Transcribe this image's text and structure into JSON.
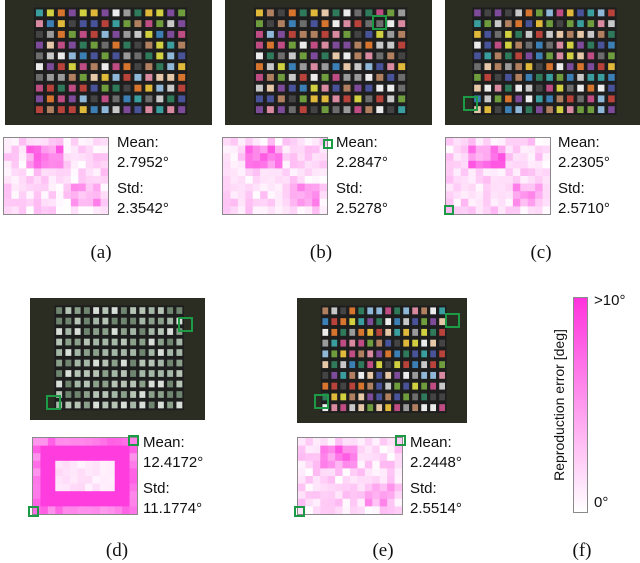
{
  "panels": [
    {
      "caption": "(a)",
      "mean_label": "Mean:",
      "mean": "2.7952°",
      "std_label": "Std:",
      "std": "2.3542°",
      "profile": "a"
    },
    {
      "caption": "(b)",
      "mean_label": "Mean:",
      "mean": "2.2847°",
      "std_label": "Std:",
      "std": "2.5278°",
      "profile": "b"
    },
    {
      "caption": "(c)",
      "mean_label": "Mean:",
      "mean": "2.2305°",
      "std_label": "Std:",
      "std": "2.5710°",
      "profile": "c"
    },
    {
      "caption": "(d)",
      "mean_label": "Mean:",
      "mean": "12.4172°",
      "std_label": "Std:",
      "std": "11.1774°",
      "profile": "d"
    },
    {
      "caption": "(e)",
      "mean_label": "Mean:",
      "mean": "2.2448°",
      "std_label": "Std:",
      "std": "2.5514°",
      "profile": "e"
    }
  ],
  "colorbar": {
    "caption": "(f)",
    "title": "Reproduction error [deg]",
    "max_label": ">10°",
    "min_label": "0°",
    "range": [
      0,
      10
    ],
    "low_color": "#ffffff",
    "high_color": "#ff33dd"
  },
  "accent_color": "#1c9a45"
}
